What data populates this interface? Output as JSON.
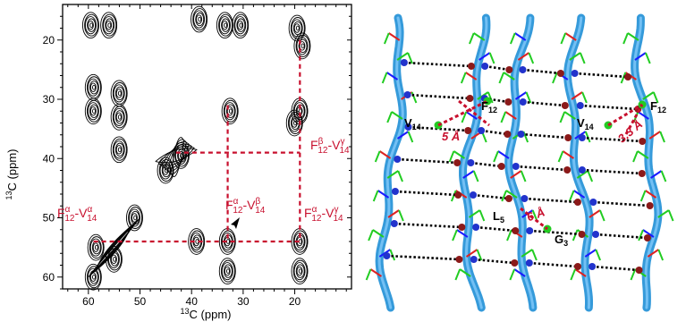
{
  "nmr_panel": {
    "x_axis_label": "13C (ppm)",
    "x_axis_label_sup": "13",
    "x_axis_label_rest": "C (ppm)",
    "y_axis_label_sup": "13",
    "y_axis_label_rest": "C (ppm)",
    "annotations": [
      {
        "main": "F",
        "sub1": "12",
        "sup1": "α",
        "sep": "-V",
        "sub2": "14",
        "sup2": "α"
      },
      {
        "main": "F",
        "sub1": "12",
        "sup1": "α",
        "sep": "-V",
        "sub2": "14",
        "sup2": "β"
      },
      {
        "main": "F",
        "sub1": "12",
        "sup1": "β",
        "sep": "-V",
        "sub2": "14",
        "sup2": "γ"
      },
      {
        "main": "F",
        "sub1": "12",
        "sup1": "α",
        "sep": "-V",
        "sub2": "14",
        "sup2": "γ"
      }
    ],
    "crosspeak_color": "#c8102e",
    "contour_color": "#000000"
  },
  "chart_data": {
    "type": "scatter",
    "xlabel": "13C (ppm)",
    "ylabel": "13C (ppm)",
    "xlim": [
      65,
      9
    ],
    "ylim": [
      14,
      62
    ],
    "x_ticks": [
      60,
      50,
      40,
      30,
      20
    ],
    "y_ticks": [
      20,
      30,
      40,
      50,
      60
    ],
    "peaks": [
      {
        "x": 59.5,
        "y": 17.5
      },
      {
        "x": 56,
        "y": 17.5
      },
      {
        "x": 33.5,
        "y": 17.5
      },
      {
        "x": 30.5,
        "y": 17.5
      },
      {
        "x": 19.5,
        "y": 18
      },
      {
        "x": 18.5,
        "y": 21
      },
      {
        "x": 38.5,
        "y": 16.5
      },
      {
        "x": 59,
        "y": 28
      },
      {
        "x": 59,
        "y": 32
      },
      {
        "x": 54,
        "y": 29
      },
      {
        "x": 54,
        "y": 33
      },
      {
        "x": 54,
        "y": 38.5
      },
      {
        "x": 32.5,
        "y": 32
      },
      {
        "x": 19,
        "y": 32
      },
      {
        "x": 20,
        "y": 34
      },
      {
        "x": 42,
        "y": 39.5
      },
      {
        "x": 45,
        "y": 42
      },
      {
        "x": 58.5,
        "y": 55
      },
      {
        "x": 55,
        "y": 57
      },
      {
        "x": 51,
        "y": 50
      },
      {
        "x": 39,
        "y": 54
      },
      {
        "x": 33,
        "y": 54
      },
      {
        "x": 33,
        "y": 59
      },
      {
        "x": 19,
        "y": 54
      },
      {
        "x": 19,
        "y": 59
      },
      {
        "x": 59,
        "y": 60
      }
    ],
    "crosspeak_lines": {
      "vertical_x": [
        33,
        19
      ],
      "horizontal_y": [
        39,
        54
      ]
    }
  },
  "structure_panel": {
    "labels_left": {
      "v14": {
        "main": "V",
        "sub": "14"
      },
      "f12": {
        "main": "F",
        "sub": "12"
      },
      "l5": {
        "main": "L",
        "sub": "5"
      },
      "g3": {
        "main": "G",
        "sub": "3"
      }
    },
    "labels_right": {
      "v14": {
        "main": "V",
        "sub": "14"
      },
      "f12": {
        "main": "F",
        "sub": "12"
      }
    },
    "dist_left": "5 Å",
    "dist_middle": "6 Å",
    "dist_right": "3.3 Å",
    "ribbon_color": "#1f8fd6",
    "sidechain_green": "#22cc22",
    "sidechain_blue": "#1a1aff",
    "sidechain_red": "#dd2222",
    "oxygen_color": "#8b1a1a",
    "nitrogen_color": "#2233cc"
  }
}
